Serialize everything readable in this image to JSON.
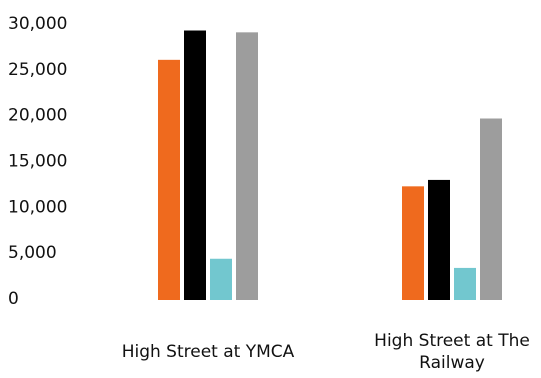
{
  "chart_data": {
    "type": "bar",
    "title": "",
    "xlabel": "",
    "ylabel": "",
    "categories": [
      "High Street at YMCA",
      "High Street at The Railway"
    ],
    "series": [
      {
        "color": "#ef6a1e",
        "values": [
          26200,
          12400
        ]
      },
      {
        "color": "#000000",
        "values": [
          29400,
          13100
        ]
      },
      {
        "color": "#72c7cf",
        "values": [
          4500,
          3500
        ]
      },
      {
        "color": "#9d9d9d",
        "values": [
          29200,
          19800
        ]
      }
    ],
    "ylim": [
      0,
      30000
    ],
    "yticks": [
      "0",
      "5,000",
      "10,000",
      "15,000",
      "20,000",
      "25,000",
      "30,000"
    ],
    "grid": false,
    "legend": "none"
  }
}
